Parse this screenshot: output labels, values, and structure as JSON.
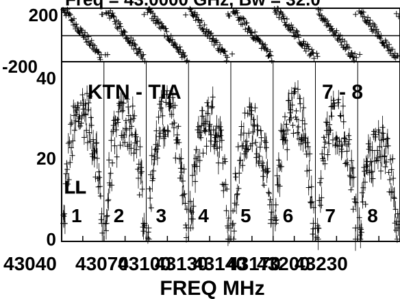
{
  "chart_data": {
    "type": "scatter",
    "title": "Freq = 43.0000 GHz, Bw = 32.0",
    "xlabel": "FREQ MHz",
    "baseline": "KTN - TIA",
    "pol_pair": "7 - 8",
    "pol_label": "LL",
    "x_tick_labels": [
      "43040",
      "43070",
      "43100",
      "43130",
      "43140",
      "43170",
      "43200",
      "43230"
    ],
    "phase_panel": {
      "ylim": [
        -200,
        200
      ],
      "y_tick_labels": [
        "200",
        "-200"
      ],
      "zero_line": 0
    },
    "amp_panel": {
      "ylim": [
        0,
        40
      ],
      "y_tick_labels": [
        "40",
        "20",
        "0"
      ]
    },
    "ifs": [
      {
        "label": "1",
        "amp_peak": 29,
        "amp_edge": 4,
        "phase_start": 200,
        "phase_end": -180
      },
      {
        "label": "2",
        "amp_peak": 27,
        "amp_edge": 4,
        "phase_start": 200,
        "phase_end": -180
      },
      {
        "label": "3",
        "amp_peak": 28,
        "amp_edge": 3,
        "phase_start": 190,
        "phase_end": -190
      },
      {
        "label": "4",
        "amp_peak": 27,
        "amp_edge": 3,
        "phase_start": 190,
        "phase_end": -190
      },
      {
        "label": "5",
        "amp_peak": 25,
        "amp_edge": 4,
        "phase_start": 190,
        "phase_end": -160
      },
      {
        "label": "6",
        "amp_peak": 29,
        "amp_edge": 4,
        "phase_start": 200,
        "phase_end": -160
      },
      {
        "label": "7",
        "amp_peak": 27,
        "amp_edge": 3,
        "phase_start": 190,
        "phase_end": -190
      },
      {
        "label": "8",
        "amp_peak": 21,
        "amp_edge": 3,
        "phase_start": 190,
        "phase_end": -190
      }
    ]
  }
}
